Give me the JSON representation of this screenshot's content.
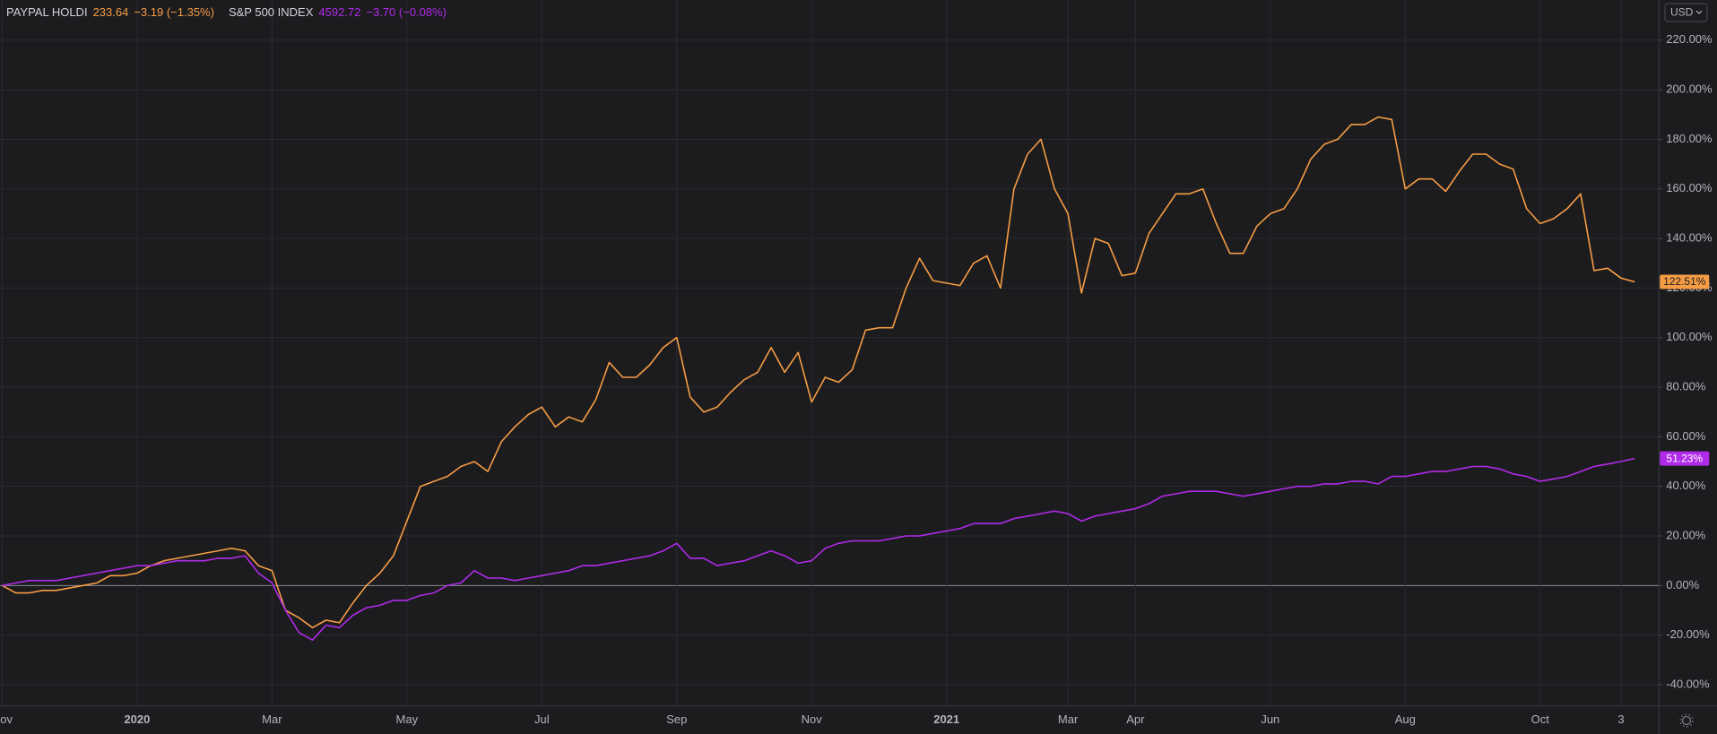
{
  "chart_data": {
    "type": "line",
    "currency": "USD",
    "categories": [
      "Nov",
      null,
      null,
      null,
      null,
      null,
      null,
      null,
      null,
      null,
      "2020",
      null,
      null,
      null,
      null,
      null,
      null,
      null,
      null,
      null,
      "Mar",
      null,
      null,
      null,
      null,
      null,
      null,
      null,
      null,
      null,
      "May",
      null,
      null,
      null,
      null,
      null,
      null,
      null,
      null,
      null,
      "Jul",
      null,
      null,
      null,
      null,
      null,
      null,
      null,
      null,
      null,
      "Sep",
      null,
      null,
      null,
      null,
      null,
      null,
      null,
      null,
      null,
      "Nov",
      null,
      null,
      null,
      null,
      null,
      null,
      null,
      null,
      null,
      "2021",
      null,
      null,
      null,
      null,
      null,
      null,
      null,
      null,
      "Mar",
      null,
      null,
      null,
      null,
      "Apr",
      null,
      null,
      null,
      null,
      null,
      null,
      null,
      null,
      null,
      "Jun",
      null,
      null,
      null,
      null,
      null,
      null,
      null,
      null,
      null,
      "Aug",
      null,
      null,
      null,
      null,
      null,
      null,
      null,
      null,
      null,
      "Oct",
      null,
      null,
      null,
      null,
      null,
      "3",
      null
    ],
    "series": [
      {
        "name": "PAYPAL HOLDI",
        "price": "233.64",
        "change": "−3.19 (−1.35%)",
        "last_label": "122.51%",
        "color": "#f59c44",
        "values": [
          0,
          -3,
          -3,
          -2,
          -2,
          -1,
          0,
          1,
          4,
          4,
          5,
          8,
          10,
          11,
          12,
          13,
          14,
          15,
          14,
          8,
          6,
          -10,
          -13,
          -17,
          -14,
          -15,
          -7,
          0,
          5,
          12,
          26,
          40,
          42,
          44,
          48,
          50,
          46,
          58,
          64,
          69,
          72,
          64,
          68,
          66,
          75,
          90,
          84,
          84,
          89,
          96,
          100,
          76,
          70,
          72,
          78,
          83,
          86,
          96,
          86,
          94,
          74,
          84,
          82,
          87,
          103,
          104,
          104,
          120,
          132,
          123,
          122,
          121,
          130,
          133,
          120,
          160,
          174,
          180,
          160,
          150,
          118,
          140,
          138,
          125,
          126,
          142,
          150,
          158,
          158,
          160,
          146,
          134,
          134,
          145,
          150,
          152,
          160,
          172,
          178,
          180,
          186,
          186,
          189,
          188,
          160,
          164,
          164,
          159,
          167,
          174,
          174,
          170,
          168,
          152,
          146,
          148,
          152,
          158,
          127,
          128,
          124,
          122.51
        ]
      },
      {
        "name": "S&P 500 INDEX",
        "price": "4592.72",
        "change": "−3.70 (−0.08%)",
        "last_label": "51.23%",
        "color": "#b02ae8",
        "values": [
          0,
          1,
          2,
          2,
          2,
          3,
          4,
          5,
          6,
          7,
          8,
          8,
          9,
          10,
          10,
          10,
          11,
          11,
          12,
          5,
          1,
          -10,
          -19,
          -22,
          -16,
          -17,
          -12,
          -9,
          -8,
          -6,
          -6,
          -4,
          -3,
          0,
          1,
          6,
          3,
          3,
          2,
          3,
          4,
          5,
          6,
          8,
          8,
          9,
          10,
          11,
          12,
          14,
          17,
          11,
          11,
          8,
          9,
          10,
          12,
          14,
          12,
          9,
          10,
          15,
          17,
          18,
          18,
          18,
          19,
          20,
          20,
          21,
          22,
          23,
          25,
          25,
          25,
          27,
          28,
          29,
          30,
          29,
          26,
          28,
          29,
          30,
          31,
          33,
          36,
          37,
          38,
          38,
          38,
          37,
          36,
          37,
          38,
          39,
          40,
          40,
          41,
          41,
          42,
          42,
          41,
          44,
          44,
          45,
          46,
          46,
          47,
          48,
          48,
          47,
          45,
          44,
          42,
          43,
          44,
          46,
          48,
          49,
          50,
          51.23
        ]
      }
    ],
    "ylim": [
      -48.6,
      236.2
    ],
    "yticks": [
      {
        "value": -40,
        "label": "-40.00%"
      },
      {
        "value": -20,
        "label": "-20.00%"
      },
      {
        "value": 0,
        "label": "0.00%"
      },
      {
        "value": 20,
        "label": "20.00%"
      },
      {
        "value": 40,
        "label": "40.00%"
      },
      {
        "value": 60,
        "label": "60.00%"
      },
      {
        "value": 80,
        "label": "80.00%"
      },
      {
        "value": 100,
        "label": "100.00%"
      },
      {
        "value": 120,
        "label": "120.00%"
      },
      {
        "value": 140,
        "label": "140.00%"
      },
      {
        "value": 160,
        "label": "160.00%"
      },
      {
        "value": 180,
        "label": "180.00%"
      },
      {
        "value": 200,
        "label": "200.00%"
      },
      {
        "value": 220,
        "label": "220.00%"
      }
    ],
    "grid": true
  }
}
